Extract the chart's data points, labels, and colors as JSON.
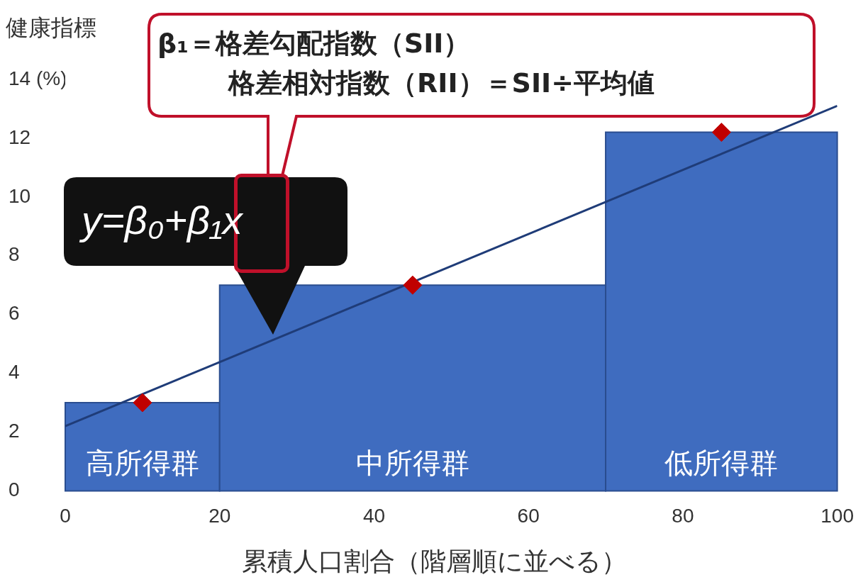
{
  "chart_data": {
    "type": "histogram",
    "bins": [
      0,
      20,
      70,
      100
    ],
    "values": [
      3,
      7,
      12.2
    ],
    "color": "#3f6cbf",
    "series": [
      {
        "type": "scatter",
        "x": [
          10,
          45,
          85
        ],
        "values": [
          3,
          7,
          12.2
        ],
        "color": "#c00000",
        "marker": "diamond"
      },
      {
        "type": "line",
        "x": [
          0,
          100
        ],
        "values": [
          2.2,
          13.1
        ],
        "color": "#1f3c78"
      }
    ],
    "xlabel": "累積人口割合（階層順に並べる）",
    "ylabel": "健康指標",
    "xlim": [
      0,
      100
    ],
    "xticks": [
      0,
      20,
      40,
      60,
      80,
      100
    ],
    "ylim": [
      0,
      14
    ],
    "yticks": [
      0,
      2,
      4,
      6,
      8,
      10,
      12,
      {
        "value": 14,
        "label": "14 (%)"
      }
    ],
    "annotations": [
      "β₁＝格差勾配指数（SII）",
      "格差相対指数（RII）＝SII÷平均値",
      "y=β₀+β₁x",
      "高所得群",
      "中所得群",
      "低所得群"
    ]
  }
}
